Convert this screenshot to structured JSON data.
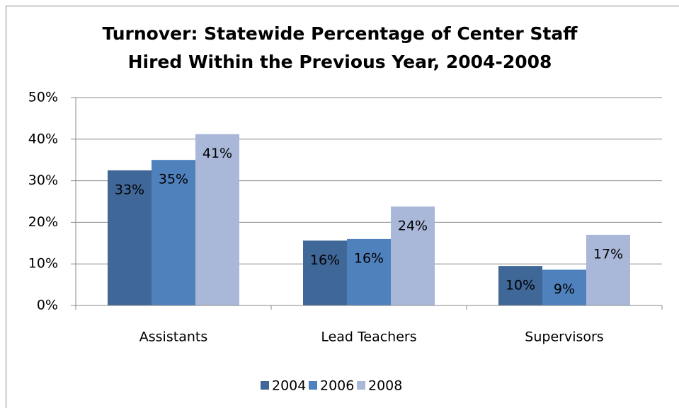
{
  "chart_data": {
    "type": "bar",
    "title": "Turnover: Statewide Percentage of Center Staff Hired Within the Previous Year, 2004-2008",
    "categories": [
      "Assistants",
      "Lead Teachers",
      "Supervisors"
    ],
    "series": [
      {
        "name": "2004",
        "color": "#3f6797",
        "values": [
          32.5,
          15.6,
          9.5
        ],
        "value_labels": [
          "33%",
          "16%",
          "10%"
        ]
      },
      {
        "name": "2006",
        "color": "#4f81bd",
        "values": [
          35,
          16,
          8.6
        ],
        "value_labels": [
          "35%",
          "16%",
          "9%"
        ]
      },
      {
        "name": "2008",
        "color": "#a9b8d8",
        "values": [
          41.2,
          23.8,
          17
        ],
        "value_labels": [
          "41%",
          "24%",
          "17%"
        ]
      }
    ],
    "ylim": [
      0,
      50
    ],
    "yticks": [
      {
        "value": 0,
        "label": "0%"
      },
      {
        "value": 10,
        "label": "10%"
      },
      {
        "value": 20,
        "label": "20%"
      },
      {
        "value": 30,
        "label": "30%"
      },
      {
        "value": 40,
        "label": "40%"
      },
      {
        "value": 50,
        "label": "50%"
      }
    ],
    "grid": true,
    "legend": "bottom"
  }
}
